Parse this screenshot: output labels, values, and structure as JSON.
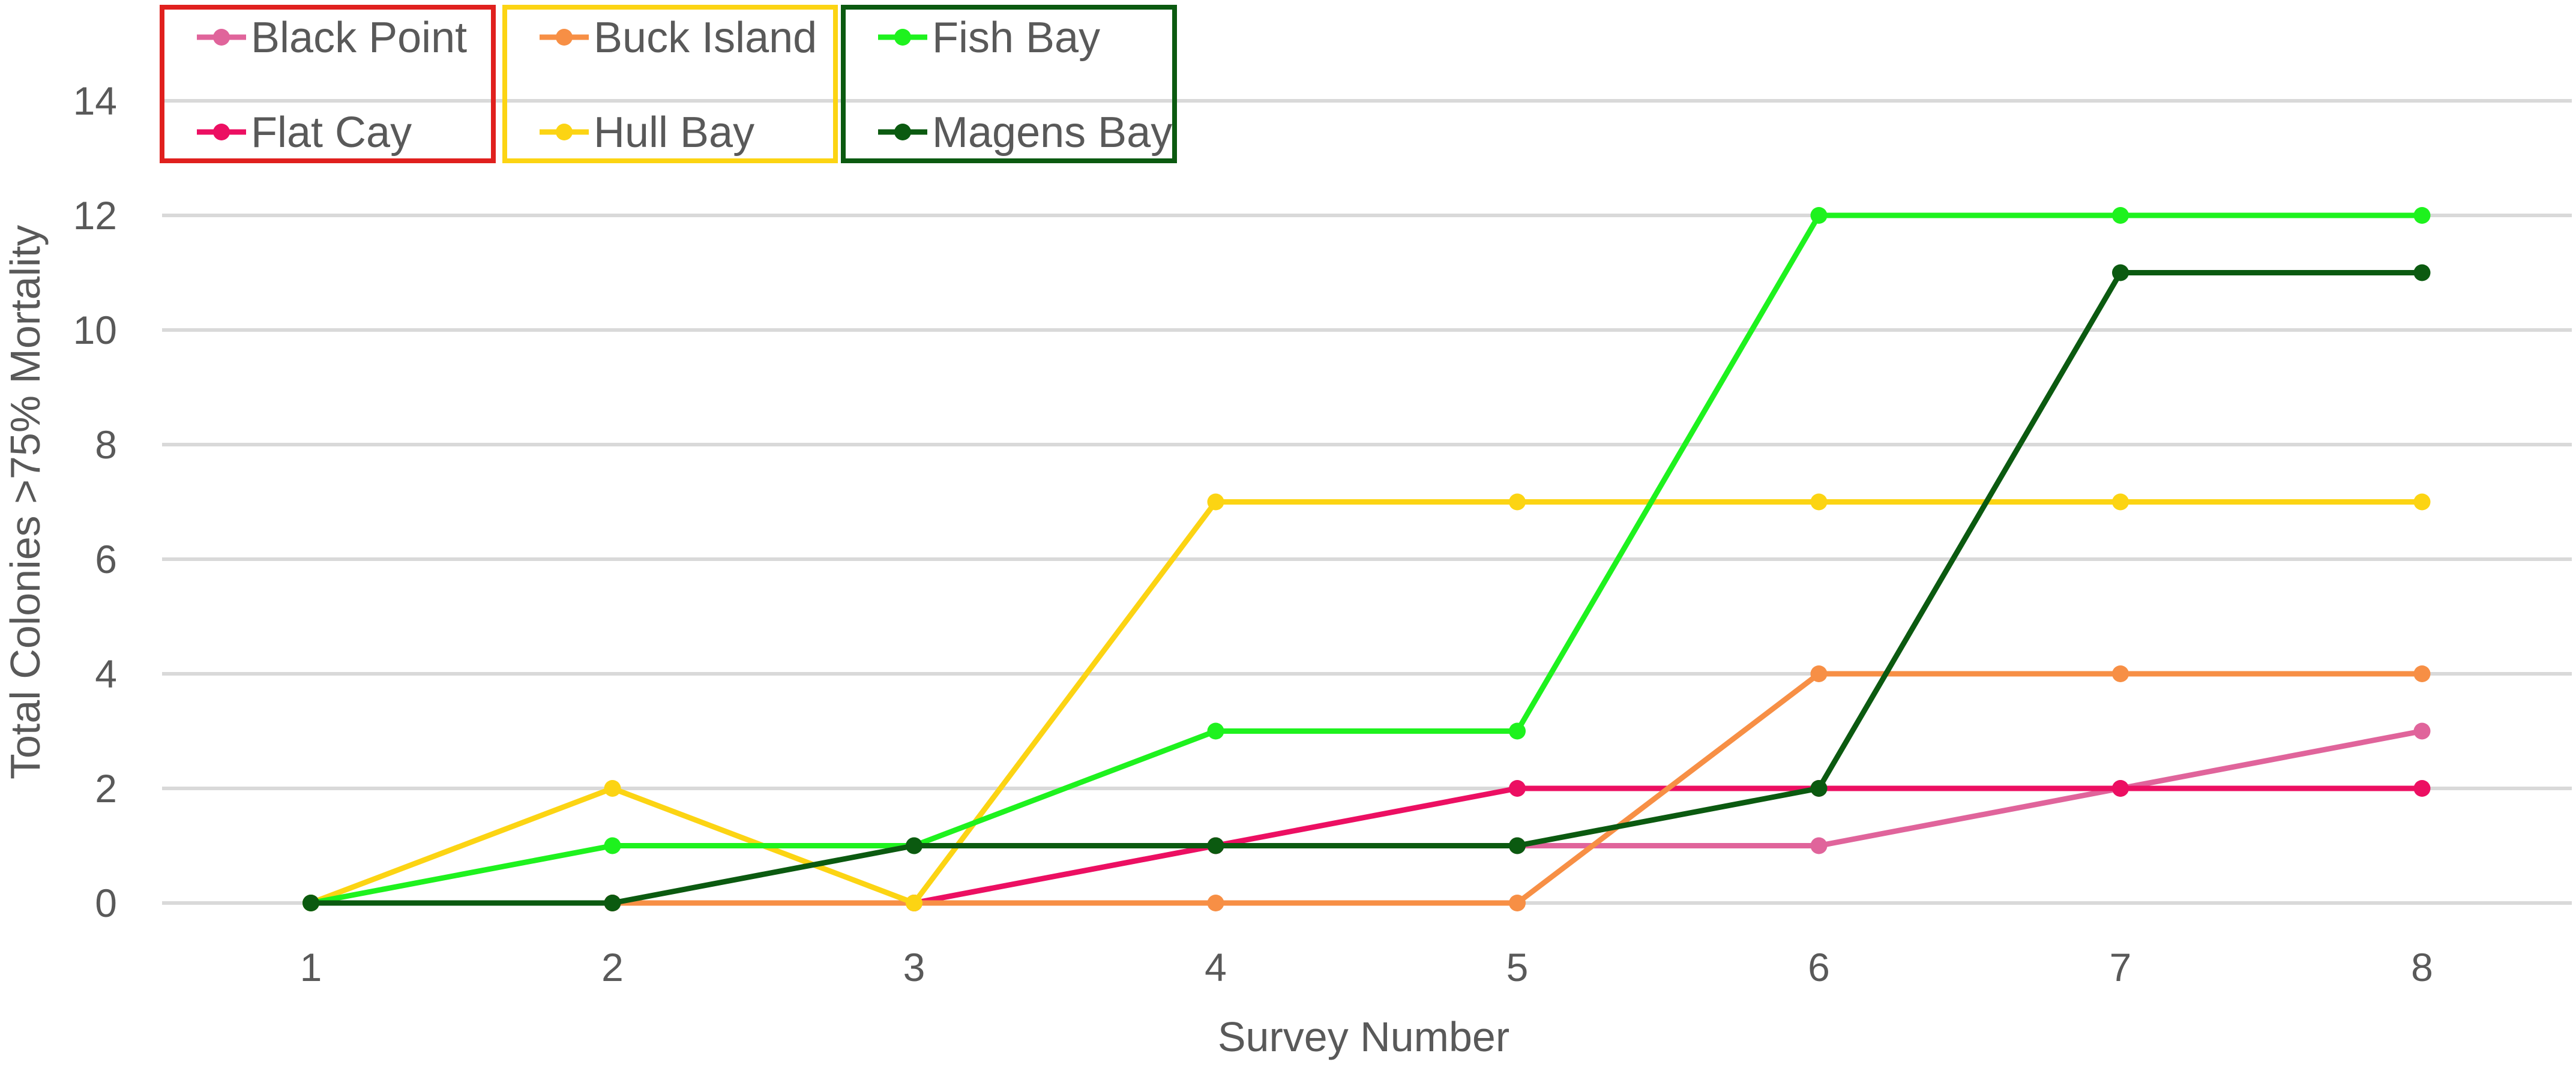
{
  "chart_data": {
    "type": "line",
    "x": [
      1,
      2,
      3,
      4,
      5,
      6,
      7,
      8
    ],
    "xlabel": "Survey Number",
    "ylabel": "Total Colonies >75% Mortality",
    "ylim": [
      0,
      14
    ],
    "yticks": [
      0,
      2,
      4,
      6,
      8,
      10,
      12,
      14
    ],
    "grid": true,
    "legend_position": "top-left",
    "series": [
      {
        "name": "Black Point",
        "color": "#e0649b",
        "values": [
          0,
          0,
          0,
          1,
          1,
          1,
          2,
          3
        ]
      },
      {
        "name": "Flat Cay",
        "color": "#ec0f62",
        "values": [
          0,
          0,
          0,
          1,
          2,
          2,
          2,
          2
        ]
      },
      {
        "name": "Buck Island",
        "color": "#f78f45",
        "values": [
          0,
          0,
          0,
          0,
          0,
          4,
          4,
          4
        ]
      },
      {
        "name": "Hull Bay",
        "color": "#fcd413",
        "values": [
          0,
          2,
          0,
          7,
          7,
          7,
          7,
          7
        ]
      },
      {
        "name": "Fish Bay",
        "color": "#1ef21e",
        "values": [
          0,
          1,
          1,
          3,
          3,
          12,
          12,
          12
        ]
      },
      {
        "name": "Magens Bay",
        "color": "#0b5a10",
        "values": [
          0,
          0,
          1,
          1,
          1,
          2,
          11,
          11
        ]
      }
    ],
    "legend_groups": [
      {
        "border_color": "#e0201e",
        "members": [
          "Black Point",
          "Flat Cay"
        ]
      },
      {
        "border_color": "#fcd413",
        "members": [
          "Buck Island",
          "Hull Bay"
        ]
      },
      {
        "border_color": "#0b5a10",
        "members": [
          "Fish Bay",
          "Magens Bay"
        ]
      }
    ]
  }
}
